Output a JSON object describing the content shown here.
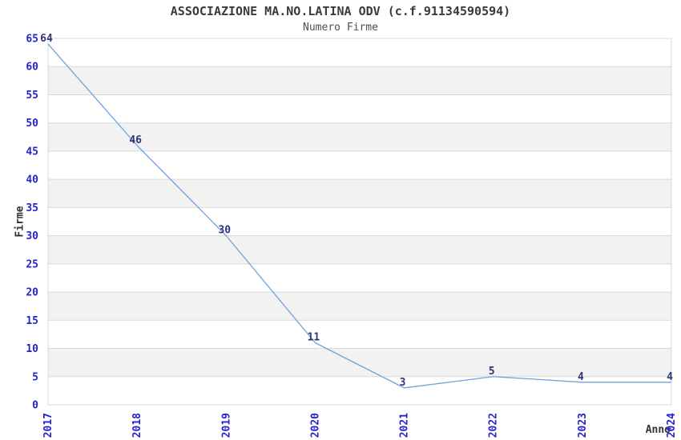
{
  "chart_data": {
    "type": "line",
    "title": "ASSOCIAZIONE MA.NO.LATINA ODV (c.f.91134590594)",
    "subtitle": "Numero Firme",
    "xlabel": "Anno",
    "ylabel": "Firme",
    "x": [
      2017,
      2018,
      2019,
      2020,
      2021,
      2022,
      2023,
      2024
    ],
    "values": [
      64,
      46,
      30,
      11,
      3,
      5,
      4,
      4
    ],
    "data_labels": [
      "64",
      "46",
      "30",
      "11",
      "3",
      "5",
      "4",
      "4"
    ],
    "ylim": [
      0,
      65
    ],
    "ytick_step": 5,
    "grid": "horizontal gridlines every 5",
    "banding": "alternating horizontal bands, gray on 5-10,15-20,25-30,35-40,45-50,55-60",
    "legend": "none",
    "colors": {
      "line": "#6fa3da",
      "tick_label": "#2424cc",
      "data_label": "#333377",
      "band": "#f2f2f2",
      "grid": "#d8d8d8",
      "title": "#3a3a3a",
      "background": "#ffffff"
    }
  }
}
